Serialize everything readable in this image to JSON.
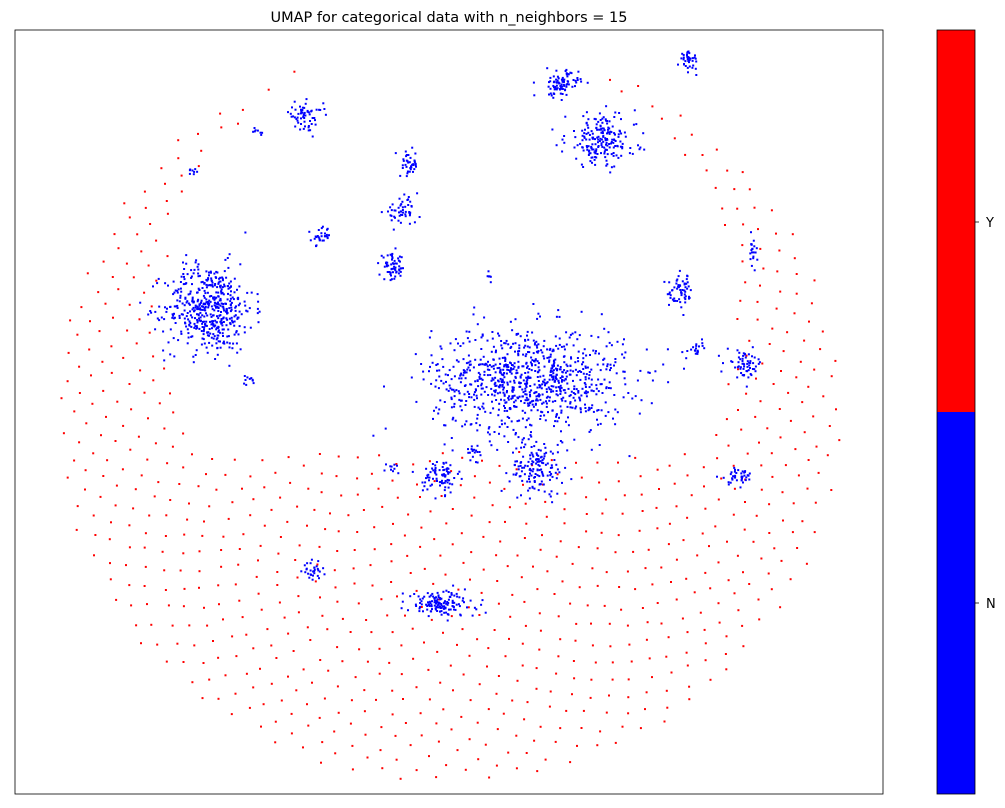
{
  "chart_data": {
    "type": "scatter",
    "title": "UMAP for categorical data with n_neighbors = 15",
    "xlabel": "",
    "ylabel": "",
    "xticks": [],
    "yticks": [],
    "grid": false,
    "series": [
      {
        "category": "Y",
        "color": "#ff0000",
        "distribution": "sparse grid of isolated points filling a large disc (ring-shaped in the upper half, filled across the lower half)",
        "approx_point_count": 900
      },
      {
        "category": "N",
        "color": "#0000ff",
        "distribution": "dense clusters in the upper-center region",
        "clusters": [
          {
            "cx": -0.3,
            "cy": 0.13,
            "rx": 0.05,
            "ry": 0.05,
            "n": 500
          },
          {
            "cx": 0.1,
            "cy": 0.04,
            "rx": 0.11,
            "ry": 0.06,
            "n": 900
          },
          {
            "cx": 0.11,
            "cy": -0.07,
            "rx": 0.03,
            "ry": 0.03,
            "n": 140
          },
          {
            "cx": -0.01,
            "cy": -0.08,
            "rx": 0.02,
            "ry": 0.02,
            "n": 80
          },
          {
            "cx": -0.01,
            "cy": -0.24,
            "rx": 0.04,
            "ry": 0.015,
            "n": 140
          },
          {
            "cx": 0.14,
            "cy": 0.41,
            "rx": 0.02,
            "ry": 0.015,
            "n": 90
          },
          {
            "cx": 0.19,
            "cy": 0.34,
            "rx": 0.04,
            "ry": 0.03,
            "n": 200
          },
          {
            "cx": -0.18,
            "cy": 0.37,
            "rx": 0.02,
            "ry": 0.015,
            "n": 60
          },
          {
            "cx": -0.06,
            "cy": 0.25,
            "rx": 0.02,
            "ry": 0.015,
            "n": 50
          },
          {
            "cx": 0.3,
            "cy": 0.44,
            "rx": 0.01,
            "ry": 0.01,
            "n": 40
          },
          {
            "cx": -0.05,
            "cy": 0.31,
            "rx": 0.01,
            "ry": 0.015,
            "n": 40
          },
          {
            "cx": -0.07,
            "cy": 0.18,
            "rx": 0.015,
            "ry": 0.015,
            "n": 60
          },
          {
            "cx": -0.16,
            "cy": 0.22,
            "rx": 0.01,
            "ry": 0.01,
            "n": 30
          },
          {
            "cx": 0.29,
            "cy": 0.15,
            "rx": 0.015,
            "ry": 0.02,
            "n": 60
          },
          {
            "cx": 0.37,
            "cy": 0.06,
            "rx": 0.02,
            "ry": 0.015,
            "n": 60
          },
          {
            "cx": 0.36,
            "cy": -0.08,
            "rx": 0.02,
            "ry": 0.01,
            "n": 40
          },
          {
            "cx": -0.17,
            "cy": -0.2,
            "rx": 0.01,
            "ry": 0.01,
            "n": 30
          },
          {
            "cx": 0.31,
            "cy": 0.08,
            "rx": 0.01,
            "ry": 0.01,
            "n": 20
          },
          {
            "cx": 0.38,
            "cy": 0.2,
            "rx": 0.005,
            "ry": 0.015,
            "n": 20
          },
          {
            "cx": -0.24,
            "cy": 0.35,
            "rx": 0.005,
            "ry": 0.005,
            "n": 8
          },
          {
            "cx": -0.32,
            "cy": 0.3,
            "rx": 0.005,
            "ry": 0.005,
            "n": 8
          },
          {
            "cx": -0.25,
            "cy": 0.04,
            "rx": 0.007,
            "ry": 0.005,
            "n": 10
          },
          {
            "cx": -0.07,
            "cy": -0.07,
            "rx": 0.007,
            "ry": 0.007,
            "n": 10
          },
          {
            "cx": 0.03,
            "cy": -0.05,
            "rx": 0.01,
            "ry": 0.01,
            "n": 15
          },
          {
            "cx": 0.05,
            "cy": 0.17,
            "rx": 0.004,
            "ry": 0.004,
            "n": 6
          }
        ]
      }
    ],
    "colorbar": {
      "colors": [
        "#0000ff",
        "#ff0000"
      ],
      "ticks": [
        "N",
        "Y"
      ]
    },
    "legend": "colorbar at right"
  }
}
